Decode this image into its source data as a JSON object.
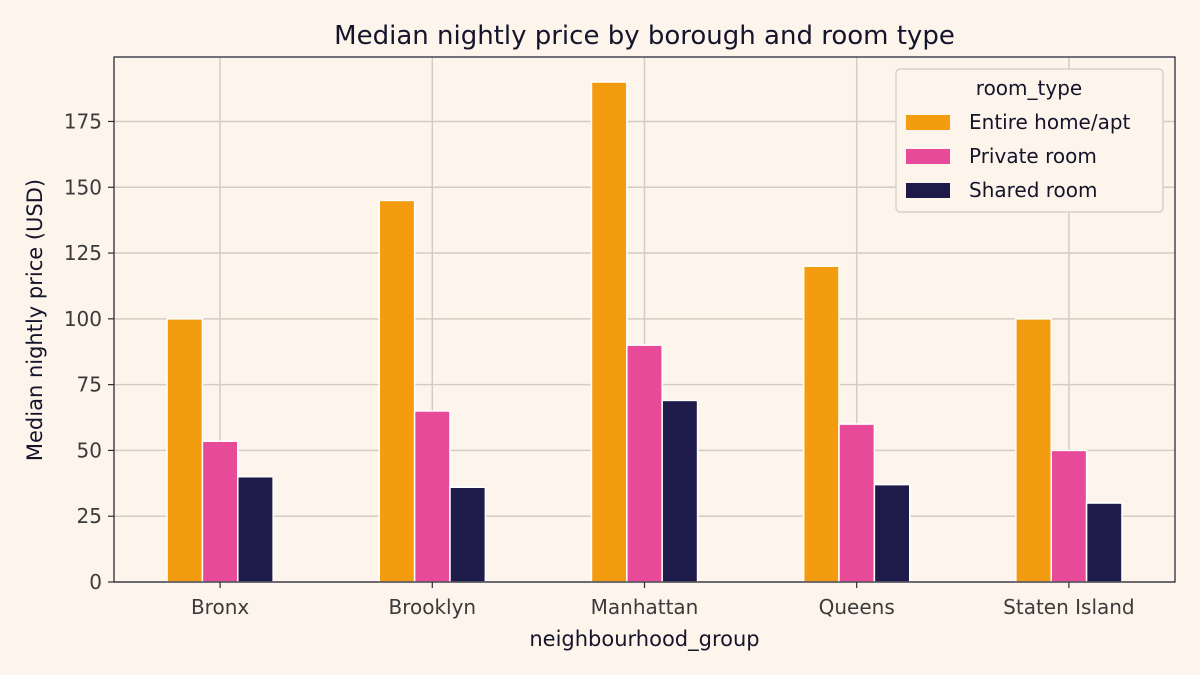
{
  "chart_data": {
    "type": "bar",
    "title": "Median nightly price by borough and room type",
    "xlabel": "neighbourhood_group",
    "ylabel": "Median nightly price (USD)",
    "categories": [
      "Bronx",
      "Brooklyn",
      "Manhattan",
      "Queens",
      "Staten Island"
    ],
    "series": [
      {
        "name": "Entire home/apt",
        "color": "#f39c0f",
        "values": [
          100,
          145,
          190,
          120,
          100
        ]
      },
      {
        "name": "Private room",
        "color": "#e84a9a",
        "values": [
          53.5,
          65,
          90,
          60,
          50
        ]
      },
      {
        "name": "Shared room",
        "color": "#1e1b4a",
        "values": [
          40,
          36,
          69,
          37,
          30
        ]
      }
    ],
    "ylim": [
      0,
      199.5
    ],
    "yticks": [
      0,
      25,
      50,
      75,
      100,
      125,
      150,
      175
    ],
    "grid": true,
    "legend": {
      "title": "room_type",
      "position": "top-right"
    }
  }
}
